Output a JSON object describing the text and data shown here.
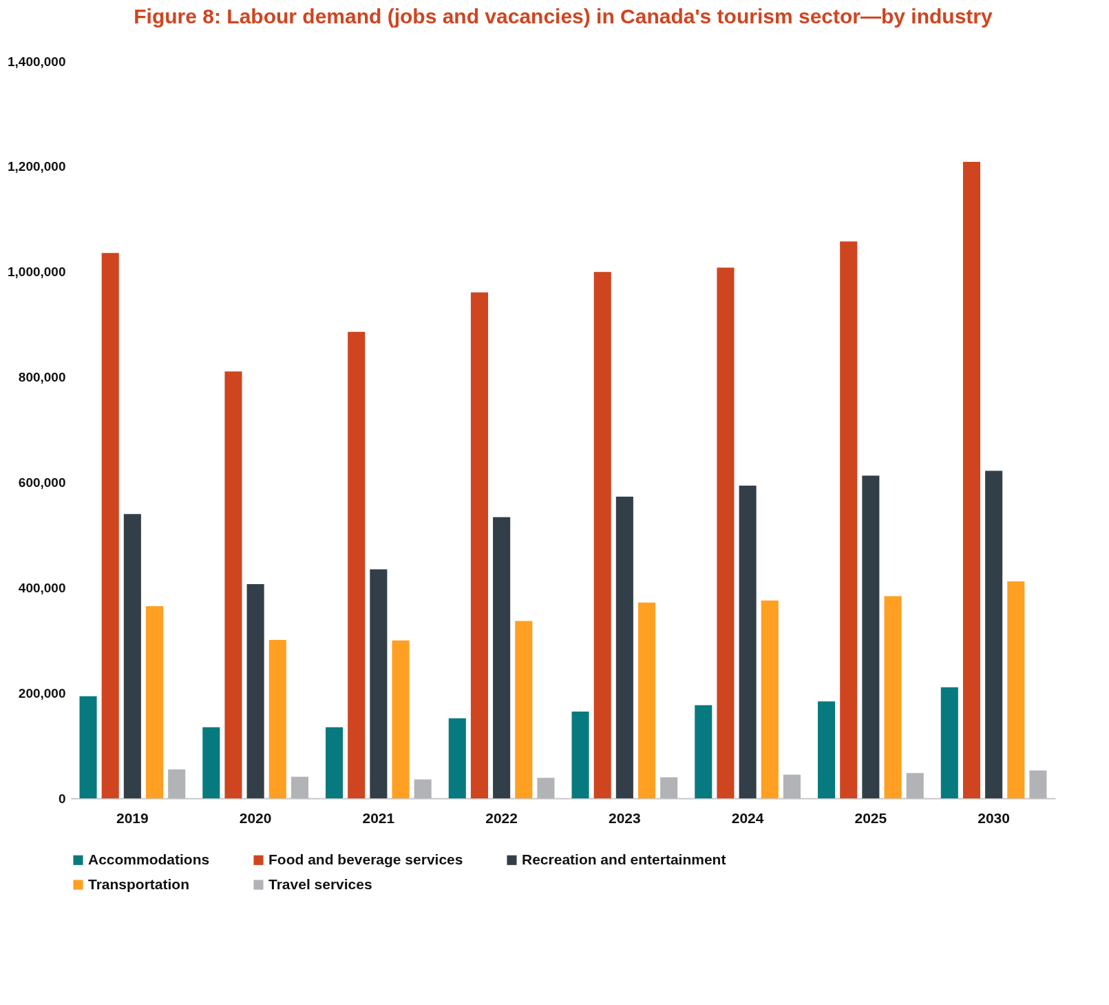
{
  "chart_data": {
    "type": "bar",
    "title": "Figure 8: Labour demand (jobs and vacancies) in Canada's tourism sector—by industry",
    "categories": [
      "2019",
      "2020",
      "2021",
      "2022",
      "2023",
      "2024",
      "2025",
      "2030"
    ],
    "series": [
      {
        "name": "Accommodations",
        "color": "#077a7f",
        "values": [
          194000,
          135000,
          135000,
          152000,
          165000,
          177000,
          184000,
          211000
        ]
      },
      {
        "name": "Food and beverage services",
        "color": "#cf4520",
        "values": [
          1036000,
          811000,
          886000,
          961000,
          1000000,
          1008000,
          1058000,
          1209000
        ]
      },
      {
        "name": "Recreation and entertainment",
        "color": "#333f48",
        "values": [
          540000,
          407000,
          435000,
          534000,
          573000,
          594000,
          613000,
          622000
        ]
      },
      {
        "name": "Transportation",
        "color": "#ffa022",
        "values": [
          365000,
          301000,
          300000,
          337000,
          372000,
          376000,
          384000,
          412000
        ]
      },
      {
        "name": "Travel services",
        "color": "#b1b3b6",
        "values": [
          55000,
          41000,
          36000,
          39000,
          40000,
          45000,
          48000,
          53000
        ]
      }
    ],
    "ylim": [
      0,
      1400000
    ],
    "yticks": [
      0,
      {
        "value": 200000,
        "label": "200,000"
      },
      {
        "value": 400000,
        "label": "400,000"
      },
      {
        "value": 600000,
        "label": "600,000"
      },
      {
        "value": 800000,
        "label": "800,000"
      },
      {
        "value": 1000000,
        "label": "1,000,000"
      },
      {
        "value": 1200000,
        "label": "1,200,000"
      },
      {
        "value": 1400000,
        "label": "1,400,000"
      }
    ],
    "grid": false,
    "legend": "bottom"
  }
}
